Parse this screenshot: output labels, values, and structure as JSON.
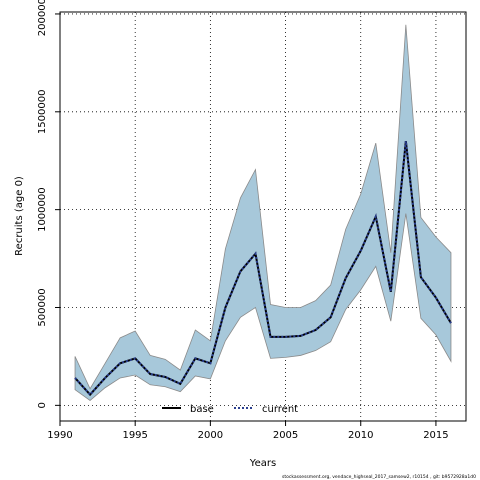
{
  "chart_data": {
    "type": "line",
    "title": "",
    "xlabel": "Years",
    "ylabel": "Recruits (age 0)",
    "xlim": [
      1990,
      2017
    ],
    "ylim": [
      -80000,
      2010000
    ],
    "xticks": [
      1990,
      1995,
      2000,
      2005,
      2010,
      2015
    ],
    "yticks": [
      0,
      500000,
      1000000,
      1500000,
      2000000
    ],
    "ytick_labels": [
      "0",
      "500000",
      "1000000",
      "1500000",
      "2000000"
    ],
    "grid": true,
    "legend_position": "bottom-center",
    "x": [
      1991,
      1992,
      1993,
      1994,
      1995,
      1996,
      1997,
      1998,
      1999,
      2000,
      2001,
      2002,
      2003,
      2004,
      2005,
      2006,
      2007,
      2008,
      2009,
      2010,
      2011,
      2012,
      2013,
      2014,
      2015,
      2016
    ],
    "band": {
      "lower": [
        80000,
        25000,
        90000,
        140000,
        155000,
        105000,
        95000,
        70000,
        150000,
        135000,
        330000,
        450000,
        500000,
        240000,
        245000,
        255000,
        280000,
        325000,
        490000,
        590000,
        710000,
        430000,
        980000,
        445000,
        360000,
        225000
      ],
      "upper": [
        250000,
        85000,
        215000,
        345000,
        380000,
        255000,
        235000,
        180000,
        385000,
        330000,
        800000,
        1060000,
        1205000,
        515000,
        500000,
        500000,
        535000,
        615000,
        900000,
        1080000,
        1340000,
        780000,
        1945000,
        960000,
        860000,
        780000
      ]
    },
    "series": [
      {
        "name": "base",
        "line_style": "solid",
        "color": "#000000",
        "values": [
          140000,
          55000,
          140000,
          215000,
          240000,
          160000,
          145000,
          110000,
          240000,
          215000,
          500000,
          685000,
          775000,
          350000,
          350000,
          355000,
          385000,
          450000,
          650000,
          790000,
          965000,
          580000,
          1350000,
          655000,
          550000,
          420000
        ]
      },
      {
        "name": "current",
        "line_style": "dotted",
        "color": "#2a3f8f",
        "values": [
          140000,
          55000,
          140000,
          215000,
          240000,
          160000,
          145000,
          110000,
          240000,
          215000,
          500000,
          685000,
          775000,
          350000,
          350000,
          355000,
          385000,
          450000,
          650000,
          790000,
          965000,
          580000,
          1350000,
          655000,
          550000,
          420000
        ]
      }
    ],
    "colors": {
      "band_fill": "#a7c8da",
      "band_stroke": "#8a8a8a",
      "grid": "#000000"
    }
  },
  "footer": "stockassessment.org, vendace_highseal_2017_samsew2, r10154 , git: b9572928a1d0"
}
